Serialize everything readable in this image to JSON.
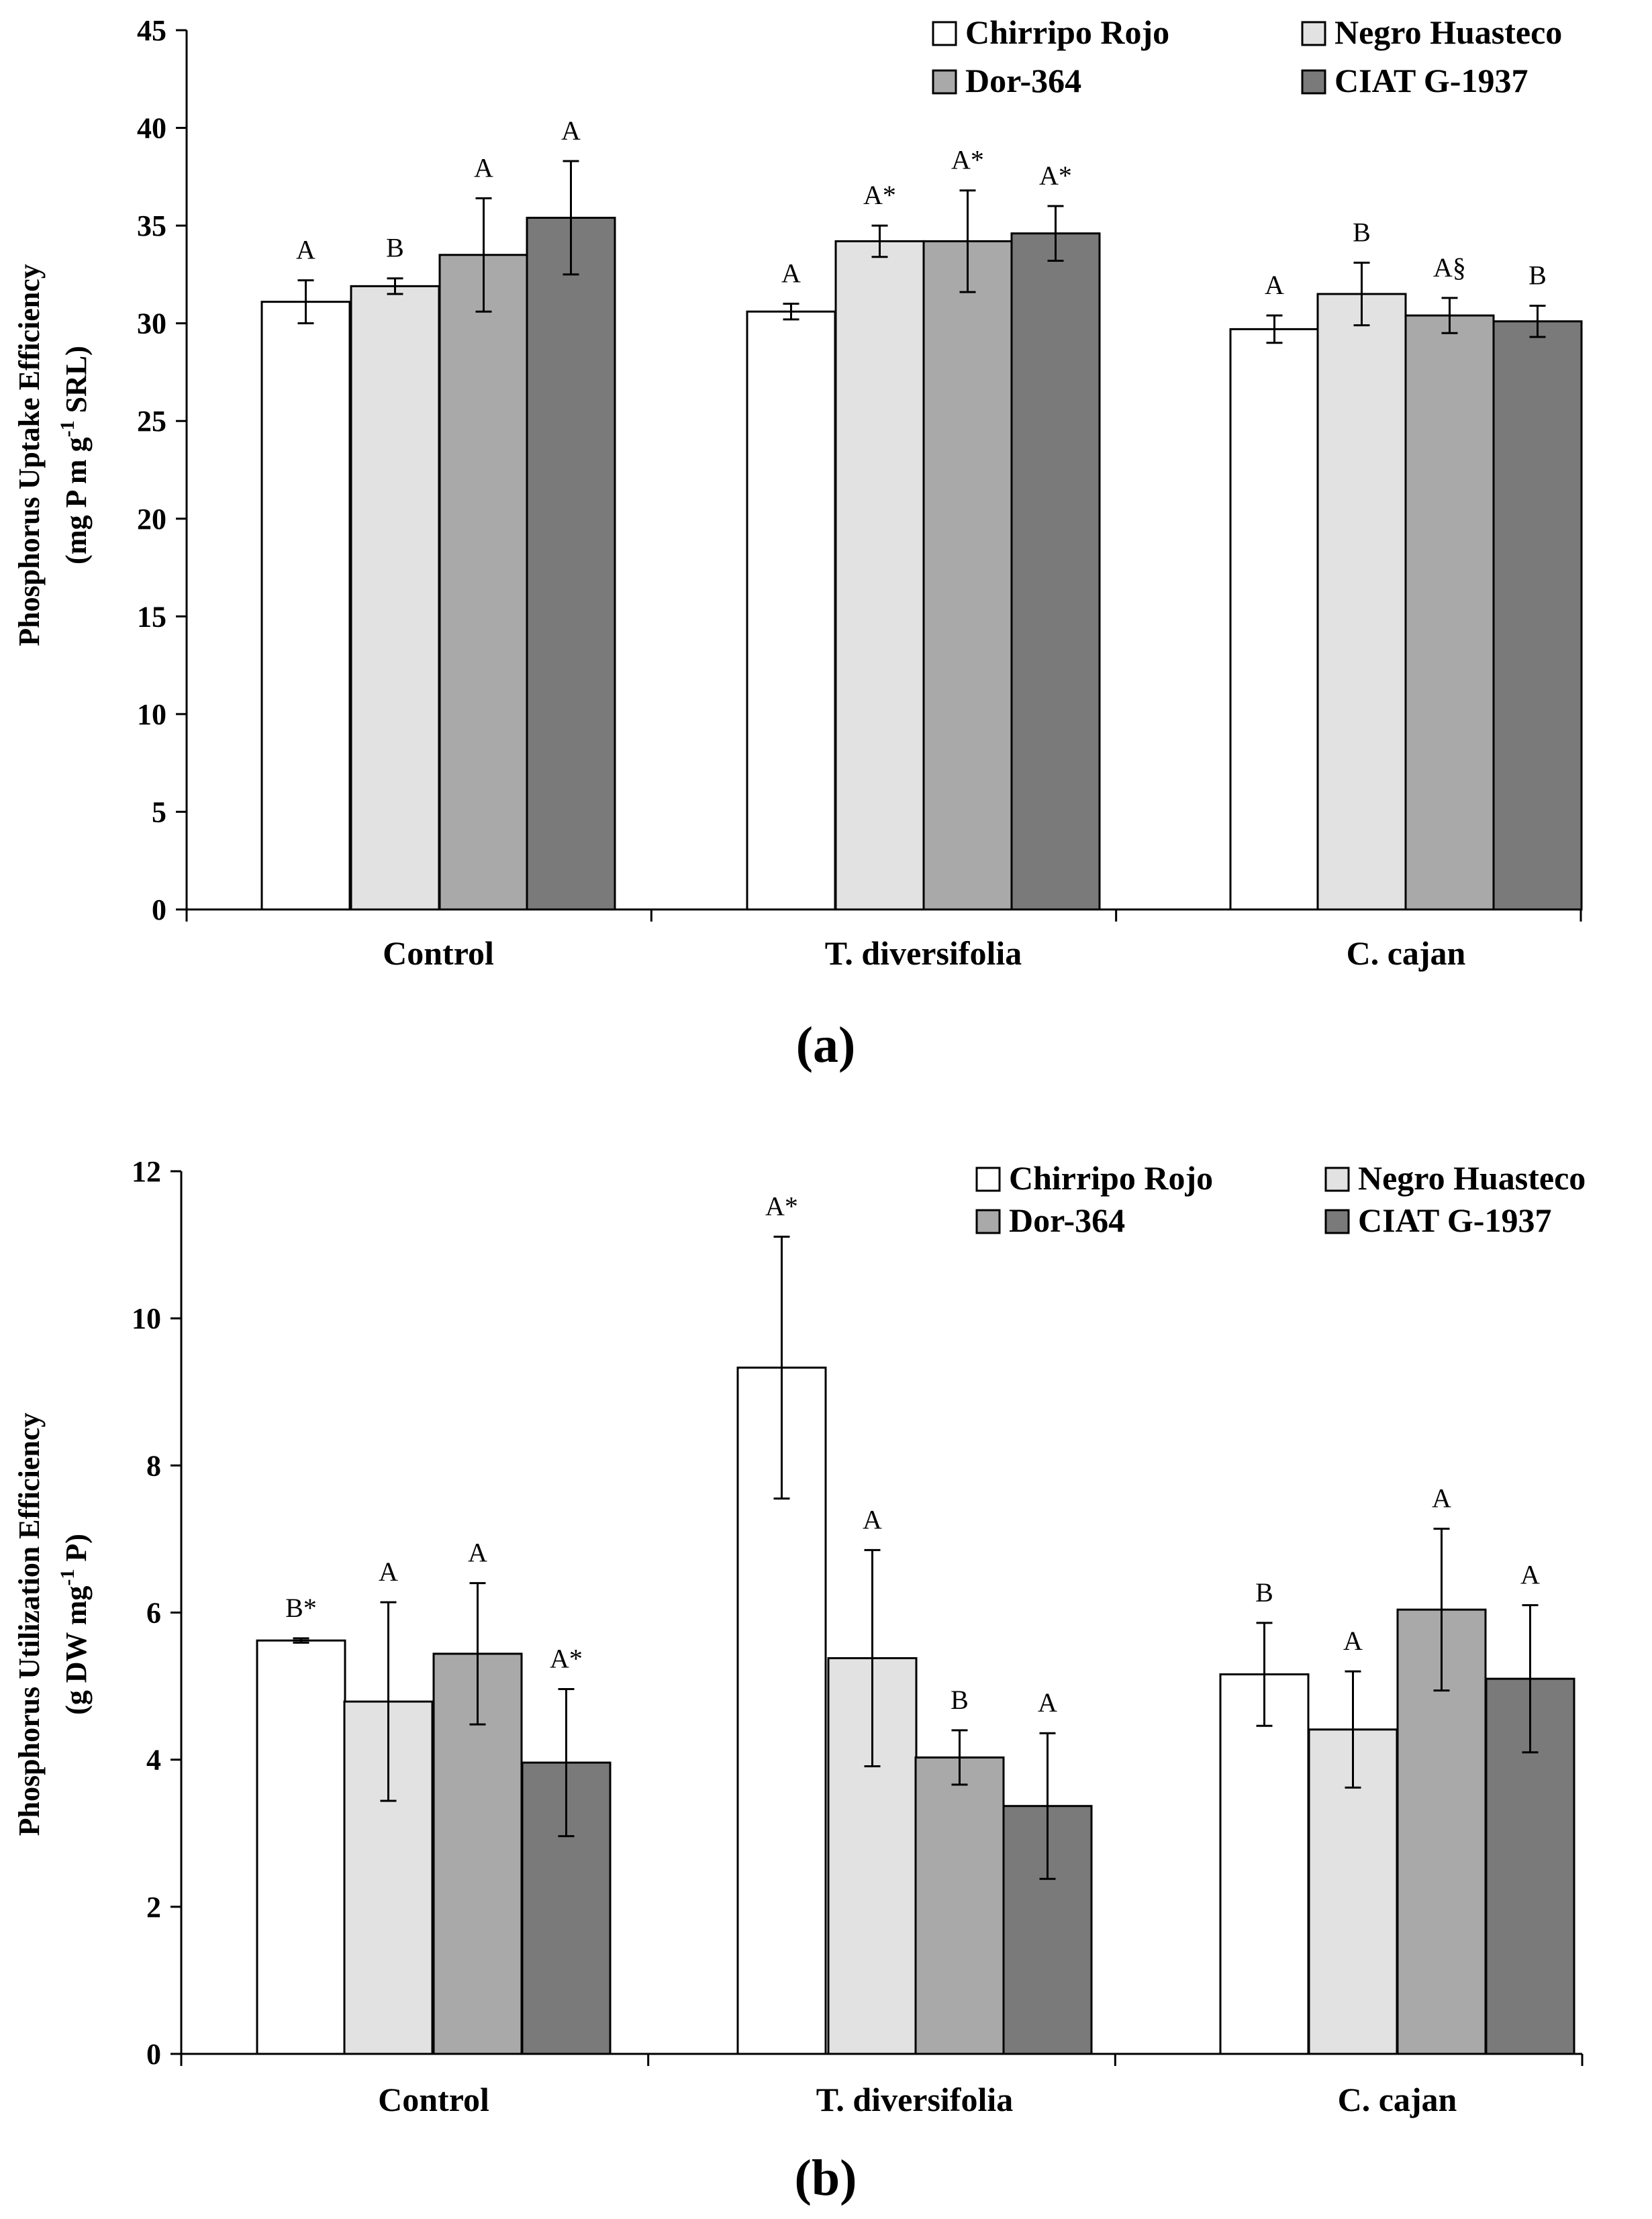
{
  "colors": {
    "series": [
      "#ffffff",
      "#e2e2e2",
      "#a9a9a9",
      "#7a7a7a"
    ],
    "stroke": "#000000"
  },
  "chart_data": [
    {
      "type": "bar",
      "panel_label": "a",
      "ylabel_line1": "Phosphorus Uptake Efficiency",
      "ylabel_line2": "(mg P m g",
      "ylabel_sup": "-1",
      "ylabel_line2_end": " SRL)",
      "ylim": [
        0,
        45
      ],
      "ytick_step": 5,
      "yticks": [
        "0",
        "5",
        "10",
        "15",
        "20",
        "25",
        "30",
        "35",
        "40",
        "45"
      ],
      "categories": [
        "Control",
        "T. diversifolia",
        "C. cajan"
      ],
      "legend": [
        "Chirripo Rojo",
        "Negro Huasteco",
        "Dor-364",
        "CIAT G-1937"
      ],
      "series": [
        {
          "name": "Chirripo Rojo",
          "values": [
            31.1,
            30.6,
            29.7
          ],
          "errors": [
            1.1,
            0.4,
            0.7
          ],
          "labels": [
            "A",
            "A",
            "A"
          ]
        },
        {
          "name": "Negro Huasteco",
          "values": [
            31.9,
            34.2,
            31.5
          ],
          "errors": [
            0.4,
            0.8,
            1.6
          ],
          "labels": [
            "B",
            "A*",
            "B"
          ]
        },
        {
          "name": "Dor-364",
          "values": [
            33.5,
            34.2,
            30.4
          ],
          "errors": [
            2.9,
            2.6,
            0.9
          ],
          "labels": [
            "A",
            "A*",
            "A§"
          ]
        },
        {
          "name": "CIAT G-1937",
          "values": [
            35.4,
            34.6,
            30.1
          ],
          "errors": [
            2.9,
            1.4,
            0.8
          ],
          "labels": [
            "A",
            "A*",
            "B"
          ]
        }
      ]
    },
    {
      "type": "bar",
      "panel_label": "b",
      "ylabel_line1": "Phosphorus Utilization Efficiency",
      "ylabel_line2": "(g DW mg",
      "ylabel_sup": "-1",
      "ylabel_line2_end": " P)",
      "ylim": [
        0,
        12
      ],
      "ytick_step": 2,
      "yticks": [
        "0",
        "2",
        "4",
        "6",
        "8",
        "10",
        "12"
      ],
      "categories": [
        "Control",
        "T. diversifolia",
        "C. cajan"
      ],
      "legend": [
        "Chirripo Rojo",
        "Negro Huasteco",
        "Dor-364",
        "CIAT G-1937"
      ],
      "series": [
        {
          "name": "Chirripo Rojo",
          "values": [
            5.62,
            9.33,
            5.16
          ],
          "errors": [
            0.03,
            1.78,
            0.7
          ],
          "labels": [
            "B*",
            "A*",
            "B"
          ]
        },
        {
          "name": "Negro Huasteco",
          "values": [
            4.79,
            5.38,
            4.41
          ],
          "errors": [
            1.35,
            1.47,
            0.79
          ],
          "labels": [
            "A",
            "A",
            "A"
          ]
        },
        {
          "name": "Dor-364",
          "values": [
            5.44,
            4.03,
            6.04
          ],
          "errors": [
            0.96,
            0.37,
            1.1
          ],
          "labels": [
            "A",
            "B",
            "A"
          ]
        },
        {
          "name": "CIAT G-1937",
          "values": [
            3.96,
            3.37,
            5.1
          ],
          "errors": [
            1.0,
            0.99,
            1.0
          ],
          "labels": [
            "A*",
            "A",
            "A"
          ]
        }
      ]
    }
  ]
}
